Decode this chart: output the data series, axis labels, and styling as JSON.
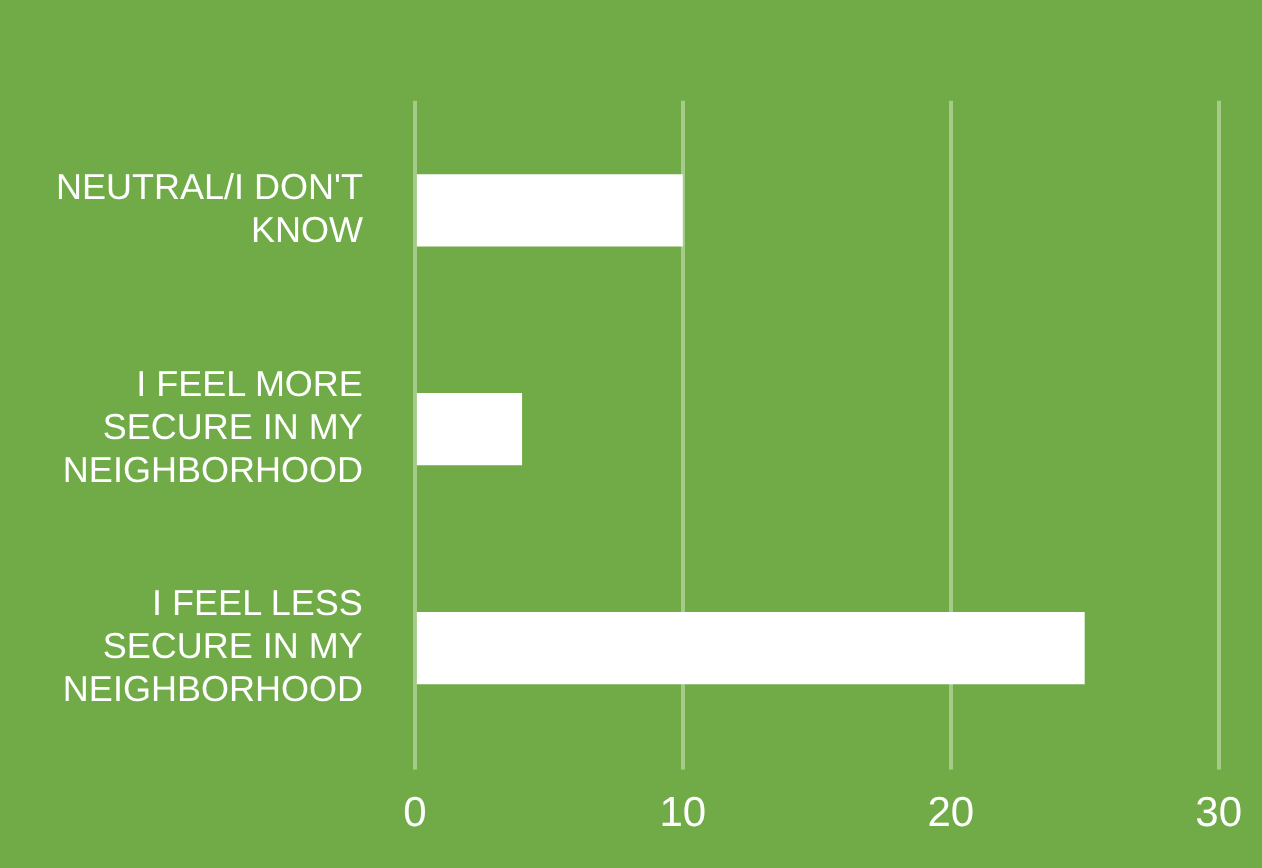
{
  "chart_data": {
    "type": "bar",
    "orientation": "horizontal",
    "categories": [
      "NEUTRAL/I DON'T KNOW",
      "I FEEL MORE SECURE IN MY NEIGHBORHOOD",
      "I FEEL LESS SECURE IN MY NEIGHBORHOOD"
    ],
    "values": [
      10,
      4,
      25
    ],
    "color": "#ffffff",
    "xlim": [
      0,
      30
    ],
    "xticks": [
      0,
      10,
      20,
      30
    ],
    "grid": "x"
  }
}
